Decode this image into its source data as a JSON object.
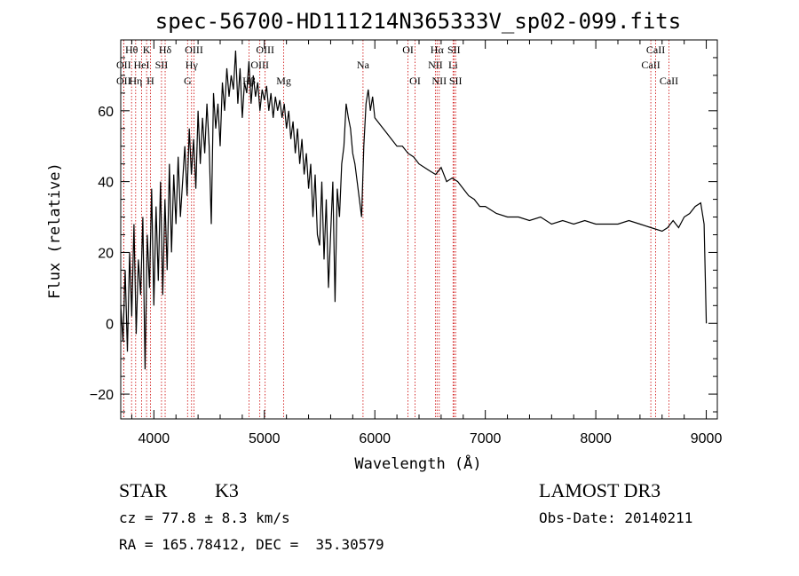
{
  "chart_data": {
    "type": "line",
    "title": "spec-56700-HD111214N365333V_sp02-099.fits",
    "xlabel": "Wavelength (Å)",
    "ylabel": "Flux (relative)",
    "xlim": [
      3700,
      9100
    ],
    "ylim": [
      -27,
      80
    ],
    "xticks": [
      4000,
      5000,
      6000,
      7000,
      8000,
      9000
    ],
    "yticks": [
      -20,
      0,
      20,
      40,
      60
    ],
    "x_minor_step": 200,
    "y_minor_step": 5,
    "series": [
      {
        "name": "flux",
        "x": [
          3700,
          3720,
          3740,
          3760,
          3780,
          3800,
          3820,
          3840,
          3860,
          3880,
          3900,
          3920,
          3940,
          3960,
          3980,
          4000,
          4020,
          4040,
          4060,
          4080,
          4100,
          4120,
          4140,
          4160,
          4180,
          4200,
          4220,
          4240,
          4260,
          4280,
          4300,
          4320,
          4340,
          4360,
          4380,
          4400,
          4420,
          4440,
          4460,
          4480,
          4500,
          4520,
          4540,
          4560,
          4580,
          4600,
          4620,
          4640,
          4660,
          4680,
          4700,
          4720,
          4740,
          4760,
          4780,
          4800,
          4820,
          4840,
          4860,
          4880,
          4900,
          4920,
          4940,
          4960,
          4980,
          5000,
          5020,
          5040,
          5060,
          5080,
          5100,
          5120,
          5140,
          5160,
          5180,
          5200,
          5220,
          5240,
          5260,
          5280,
          5300,
          5320,
          5340,
          5360,
          5380,
          5400,
          5420,
          5440,
          5460,
          5480,
          5500,
          5520,
          5540,
          5560,
          5580,
          5600,
          5620,
          5640,
          5660,
          5680,
          5700,
          5720,
          5740,
          5760,
          5780,
          5800,
          5820,
          5840,
          5860,
          5880,
          5900,
          5920,
          5940,
          5960,
          5980,
          6000,
          6050,
          6100,
          6150,
          6200,
          6250,
          6300,
          6350,
          6400,
          6450,
          6500,
          6550,
          6600,
          6650,
          6700,
          6750,
          6800,
          6850,
          6900,
          6950,
          7000,
          7100,
          7200,
          7300,
          7400,
          7500,
          7600,
          7700,
          7800,
          7900,
          8000,
          8100,
          8200,
          8300,
          8400,
          8500,
          8600,
          8650,
          8700,
          8750,
          8800,
          8850,
          8900,
          8950,
          8980,
          9000
        ],
        "values": [
          5,
          -5,
          15,
          -8,
          20,
          2,
          28,
          -3,
          18,
          8,
          30,
          -13,
          25,
          10,
          38,
          5,
          33,
          12,
          40,
          8,
          35,
          15,
          45,
          20,
          42,
          28,
          47,
          30,
          40,
          50,
          36,
          55,
          42,
          52,
          38,
          60,
          45,
          58,
          48,
          62,
          50,
          28,
          65,
          55,
          62,
          50,
          68,
          60,
          72,
          64,
          70,
          66,
          77,
          62,
          72,
          58,
          68,
          65,
          74,
          62,
          70,
          64,
          68,
          60,
          66,
          63,
          67,
          60,
          65,
          58,
          64,
          60,
          63,
          58,
          62,
          55,
          60,
          52,
          57,
          48,
          55,
          45,
          52,
          42,
          48,
          38,
          45,
          30,
          42,
          25,
          22,
          40,
          18,
          35,
          10,
          25,
          40,
          6,
          38,
          30,
          45,
          50,
          62,
          58,
          55,
          48,
          45,
          40,
          35,
          30,
          50,
          62,
          66,
          60,
          64,
          58,
          56,
          54,
          52,
          50,
          50,
          48,
          47,
          45,
          44,
          43,
          42,
          44,
          40,
          41,
          40,
          38,
          36,
          35,
          33,
          33,
          31,
          30,
          30,
          29,
          30,
          28,
          29,
          28,
          29,
          28,
          28,
          28,
          29,
          28,
          27,
          26,
          27,
          29,
          27,
          30,
          31,
          33,
          34,
          28,
          0
        ],
        "color": "#000000"
      }
    ],
    "spectral_lines": [
      {
        "label": "Hθ",
        "x": 3798,
        "row": 1
      },
      {
        "label": "OII",
        "x": 3727,
        "row": 2
      },
      {
        "label": "OII",
        "x": 3727,
        "row": 3
      },
      {
        "label": "K",
        "x": 3934,
        "row": 1
      },
      {
        "label": "HeI",
        "x": 3889,
        "row": 2
      },
      {
        "label": "Hη",
        "x": 3835,
        "row": 3
      },
      {
        "label": "Hδ",
        "x": 4102,
        "row": 1
      },
      {
        "label": "SII",
        "x": 4069,
        "row": 2
      },
      {
        "label": "H",
        "x": 3969,
        "row": 3
      },
      {
        "label": "OIII",
        "x": 4363,
        "row": 1
      },
      {
        "label": "Hγ",
        "x": 4341,
        "row": 2
      },
      {
        "label": "G",
        "x": 4305,
        "row": 3
      },
      {
        "label": "OIII",
        "x": 5007,
        "row": 1
      },
      {
        "label": "OIII",
        "x": 4959,
        "row": 2
      },
      {
        "label": "Hβ",
        "x": 4861,
        "row": 3
      },
      {
        "label": "Mg",
        "x": 5175,
        "row": 3
      },
      {
        "label": "Na",
        "x": 5893,
        "row": 2
      },
      {
        "label": "OI",
        "x": 6300,
        "row": 1
      },
      {
        "label": "OI",
        "x": 6364,
        "row": 3
      },
      {
        "label": "Hα",
        "x": 6563,
        "row": 1
      },
      {
        "label": "SII",
        "x": 6716,
        "row": 1
      },
      {
        "label": "NII",
        "x": 6548,
        "row": 2
      },
      {
        "label": "Li",
        "x": 6708,
        "row": 2
      },
      {
        "label": "NII",
        "x": 6583,
        "row": 3
      },
      {
        "label": "SII",
        "x": 6731,
        "row": 3
      },
      {
        "label": "CaII",
        "x": 8542,
        "row": 1
      },
      {
        "label": "CaII",
        "x": 8498,
        "row": 2
      },
      {
        "label": "CaII",
        "x": 8662,
        "row": 3
      }
    ],
    "line_marker_color": "#cc0000"
  },
  "info": {
    "object_class": "STAR",
    "subclass": "K3",
    "survey": "LAMOST DR3",
    "cz": "cz = 77.8 ± 8.3 km/s",
    "obs_date": "Obs-Date: 20140211",
    "radec": "RA = 165.78412, DEC =  35.30579"
  }
}
